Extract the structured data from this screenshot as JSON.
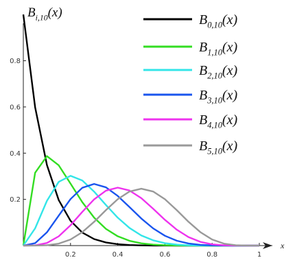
{
  "chart_data": {
    "type": "line",
    "title": "",
    "xlabel": "x",
    "ylabel": "B_{i,10}(x)",
    "ylabel_parts": {
      "base": "B",
      "sub": "i,10",
      "arg": "(x)"
    },
    "xlim": [
      0,
      1
    ],
    "ylim": [
      0,
      0.95
    ],
    "x_ticks": [
      {
        "value": 0.2,
        "label": "0.2"
      },
      {
        "value": 0.4,
        "label": "0.4"
      },
      {
        "value": 0.6,
        "label": "0.6"
      },
      {
        "value": 0.8,
        "label": "0.8"
      },
      {
        "value": 1.0,
        "label": "1"
      }
    ],
    "y_ticks": [
      {
        "value": 0.2,
        "label": "0.2"
      },
      {
        "value": 0.4,
        "label": "0.4"
      },
      {
        "value": 0.6,
        "label": "0.6"
      },
      {
        "value": 0.8,
        "label": "0.8"
      }
    ],
    "grid": false,
    "legend_position": "top-right",
    "x": [
      0.0,
      0.05,
      0.1,
      0.15,
      0.2,
      0.25,
      0.3,
      0.35,
      0.4,
      0.45,
      0.5,
      0.55,
      0.6,
      0.65,
      0.7,
      0.75,
      0.8,
      0.85,
      0.9,
      0.95,
      1.0
    ],
    "series": [
      {
        "name": "B_{0,10}(x)",
        "sub": "0,10",
        "color": "#000000",
        "values": [
          1.0,
          0.5987,
          0.3487,
          0.1969,
          0.1074,
          0.0563,
          0.0282,
          0.0135,
          0.006,
          0.0025,
          0.001,
          0.0003,
          0.0001,
          0.0,
          0.0,
          0.0,
          0.0,
          0.0,
          0.0,
          0.0,
          0.0
        ]
      },
      {
        "name": "B_{1,10}(x)",
        "sub": "1,10",
        "color": "#33dd22",
        "values": [
          0.0,
          0.3151,
          0.3874,
          0.3474,
          0.2684,
          0.1877,
          0.1211,
          0.0725,
          0.0403,
          0.0207,
          0.0098,
          0.0042,
          0.0016,
          0.0005,
          0.0001,
          0.0,
          0.0,
          0.0,
          0.0,
          0.0,
          0.0
        ]
      },
      {
        "name": "B_{2,10}(x)",
        "sub": "2,10",
        "color": "#33e5e8",
        "values": [
          0.0,
          0.0746,
          0.1937,
          0.2759,
          0.302,
          0.2816,
          0.2335,
          0.1757,
          0.1209,
          0.0763,
          0.0439,
          0.0229,
          0.0106,
          0.0043,
          0.0014,
          0.0004,
          0.0001,
          0.0,
          0.0,
          0.0,
          0.0
        ]
      },
      {
        "name": "B_{3,10}(x)",
        "sub": "3,10",
        "color": "#1a55ee",
        "values": [
          0.0,
          0.0105,
          0.0574,
          0.1298,
          0.2013,
          0.2503,
          0.2668,
          0.2522,
          0.215,
          0.1665,
          0.1172,
          0.0746,
          0.0425,
          0.0212,
          0.009,
          0.0031,
          0.0008,
          0.0001,
          0.0,
          0.0,
          0.0
        ]
      },
      {
        "name": "B_{4,10}(x)",
        "sub": "4,10",
        "color": "#ee33ee",
        "values": [
          0.0,
          0.001,
          0.0112,
          0.0401,
          0.0881,
          0.146,
          0.2001,
          0.2377,
          0.2508,
          0.2384,
          0.2051,
          0.1596,
          0.1115,
          0.0689,
          0.0368,
          0.0162,
          0.0055,
          0.0012,
          0.0001,
          0.0,
          0.0
        ]
      },
      {
        "name": "B_{5,10}(x)",
        "sub": "5,10",
        "color": "#999999",
        "values": [
          0.0,
          0.0001,
          0.0015,
          0.0085,
          0.0264,
          0.0584,
          0.1029,
          0.1536,
          0.2007,
          0.234,
          0.2461,
          0.234,
          0.2007,
          0.1536,
          0.1029,
          0.0584,
          0.0264,
          0.0085,
          0.0015,
          0.0001,
          0.0
        ]
      }
    ]
  }
}
